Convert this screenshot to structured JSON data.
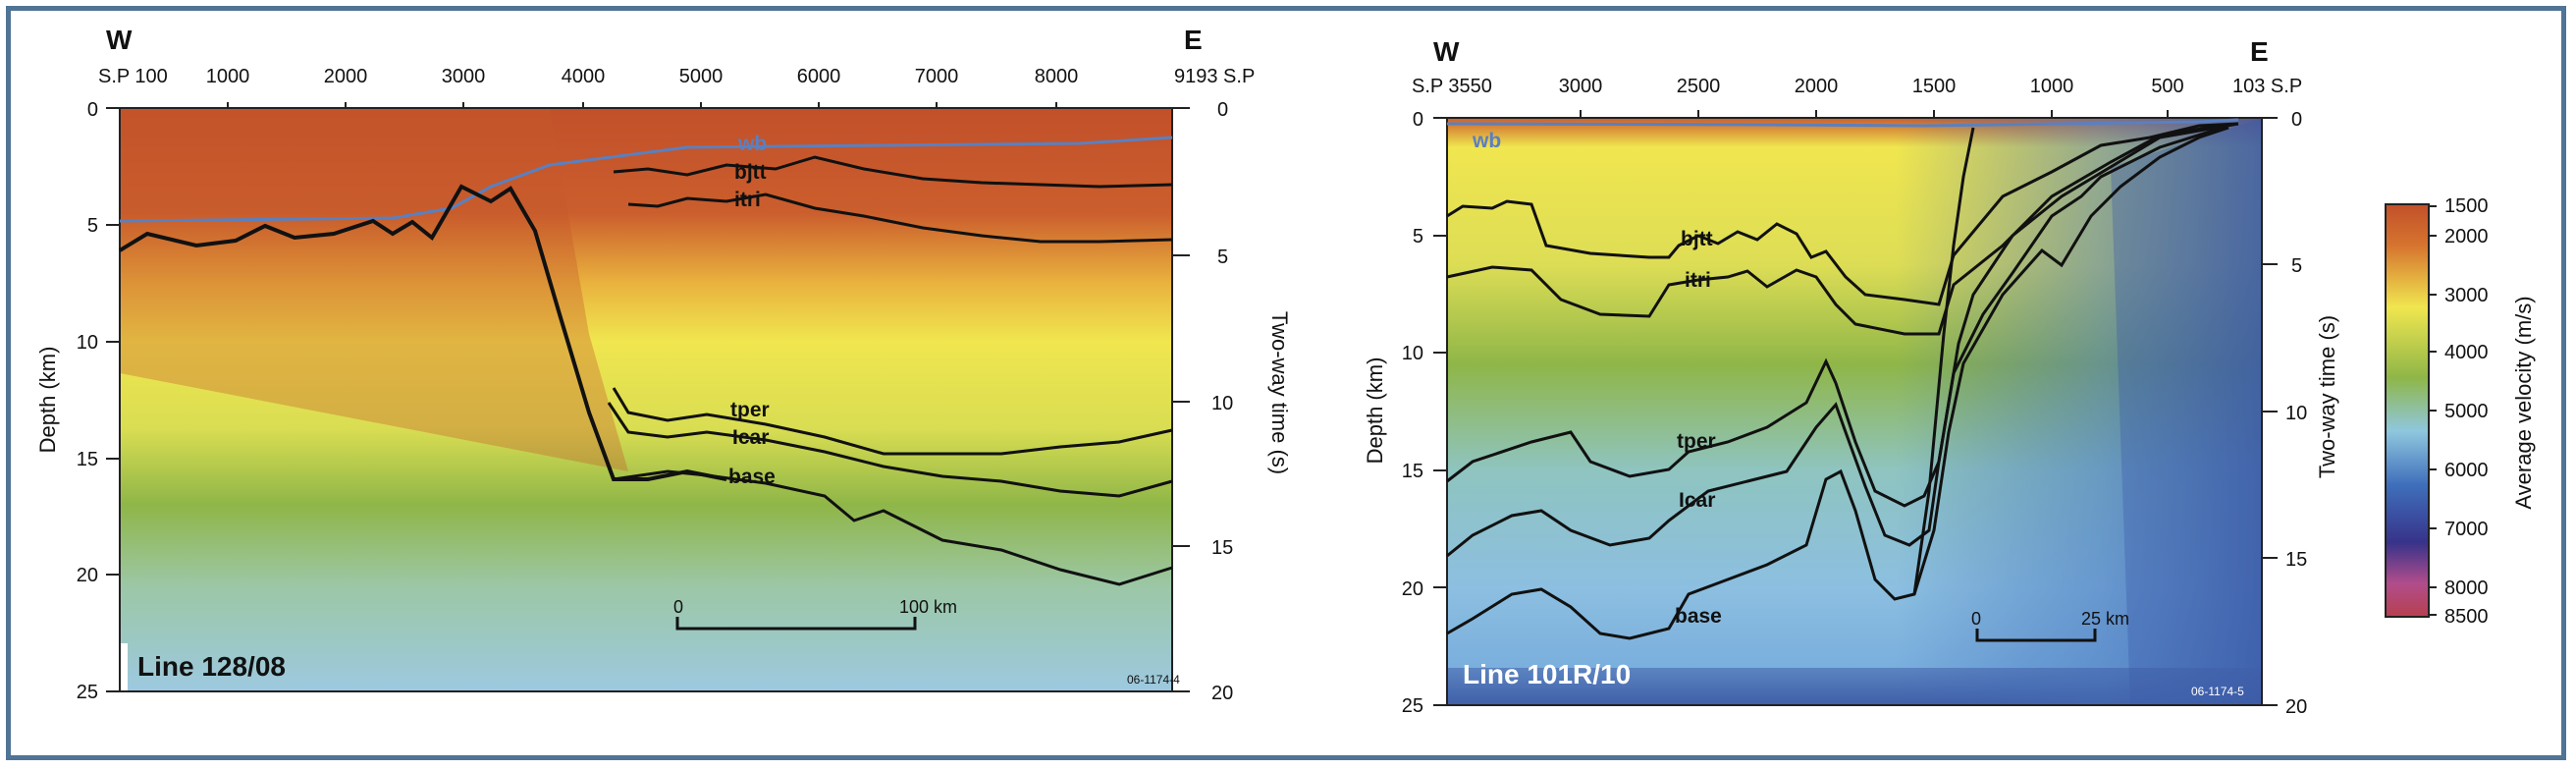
{
  "left_panel": {
    "west_label": "W",
    "east_label": "E",
    "top_ticks": [
      "S.P 100",
      "1000",
      "2000",
      "3000",
      "4000",
      "5000",
      "6000",
      "7000",
      "8000",
      "9193 S.P"
    ],
    "depth_axis_label": "Depth (km)",
    "depth_ticks": [
      "0",
      "5",
      "10",
      "15",
      "20",
      "25"
    ],
    "time_axis_label": "Two-way time (s)",
    "time_ticks": [
      "0",
      "5",
      "10",
      "15",
      "20"
    ],
    "horizons": [
      "wb",
      "bjtt",
      "itri",
      "tper",
      "Icar",
      "base"
    ],
    "scale_bar": {
      "start": "0",
      "end": "100 km"
    },
    "line_name": "Line 128/08",
    "figure_code": "06-1174-4"
  },
  "right_panel": {
    "west_label": "W",
    "east_label": "E",
    "top_ticks": [
      "S.P 3550",
      "3000",
      "2500",
      "2000",
      "1500",
      "1000",
      "500",
      "103 S.P"
    ],
    "depth_axis_label": "Depth (km)",
    "depth_ticks": [
      "0",
      "5",
      "10",
      "15",
      "20",
      "25"
    ],
    "time_axis_label": "Two-way time (s)",
    "time_ticks": [
      "0",
      "5",
      "10",
      "15",
      "20"
    ],
    "horizons": [
      "wb",
      "bjtt",
      "itri",
      "tper",
      "Icar",
      "base"
    ],
    "scale_bar": {
      "start": "0",
      "end": "25 km"
    },
    "line_name": "Line 101R/10",
    "figure_code": "06-1174-5"
  },
  "colorbar": {
    "label": "Average velocity (m/s)",
    "ticks": [
      "1500",
      "2000",
      "3000",
      "4000",
      "5000",
      "6000",
      "7000",
      "8000",
      "8500"
    ],
    "colors": [
      "#c2502a",
      "#d6742f",
      "#f0e64f",
      "#8fb648",
      "#8fc7de",
      "#3f6fbb",
      "#37338a",
      "#b24d8b",
      "#b6404f"
    ]
  },
  "colors": {
    "frame": "#4f7496",
    "water_bottom": "#5a80c0",
    "horizon": "#111111"
  }
}
